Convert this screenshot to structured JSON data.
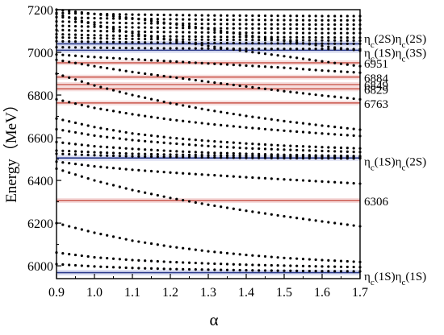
{
  "chart_data": {
    "type": "scatter",
    "xlabel": "α",
    "ylabel": "Energy（MeV）",
    "xlim": [
      0.9,
      1.7
    ],
    "ylim": [
      5940,
      7200
    ],
    "xticks": [
      "0.9",
      "1.0",
      "1.1",
      "1.2",
      "1.3",
      "1.4",
      "1.5",
      "1.6",
      "1.7"
    ],
    "yticks": [
      "6000",
      "6200",
      "6400",
      "6600",
      "6800",
      "7000",
      "7200"
    ],
    "grid": false,
    "legend": "none",
    "thresholds": [
      {
        "name": "ηc(1S)ηc(1S)",
        "value": 5968,
        "color": "#2b3a8c"
      },
      {
        "name": "ηc(1S)ηc(2S)",
        "value": 6505,
        "color": "#2b3a8c"
      },
      {
        "name": "ηc(1S)ηc(3S)",
        "value": 7010,
        "color": "#2b3a8c"
      },
      {
        "name": "ηc(2S)ηc(2S)",
        "value": 7040,
        "color": "#2b3a8c"
      }
    ],
    "resonances": [
      {
        "label": "6306",
        "value": 6306,
        "color": "#c0392b"
      },
      {
        "label": "6763",
        "value": 6763,
        "color": "#c0392b"
      },
      {
        "label": "6829",
        "value": 6829,
        "color": "#c0392b"
      },
      {
        "label": "6849",
        "value": 6849,
        "color": "#c0392b"
      },
      {
        "label": "6884",
        "value": 6884,
        "color": "#c0392b"
      },
      {
        "label": "6951",
        "value": 6951,
        "color": "#c0392b"
      }
    ],
    "right_labels": [
      {
        "text": "ηc(2S)ηc(2S)",
        "base": "η",
        "sub1": "c",
        "mid": "(2S)η",
        "sub2": "c",
        "tail": "(2S)",
        "value": 7068
      },
      {
        "text": "ηc(1S)ηc(3S)",
        "base": "η",
        "sub1": "c",
        "mid": "(1S)η",
        "sub2": "c",
        "tail": "(3S)",
        "value": 7002
      },
      {
        "text": "6951",
        "value": 6951
      },
      {
        "text": "6884",
        "value": 6884
      },
      {
        "text": "6849",
        "value": 6849
      },
      {
        "text": "6829",
        "value": 6829
      },
      {
        "text": "6763",
        "value": 6763
      },
      {
        "text": "ηc(1S)ηc(2S)",
        "base": "η",
        "sub1": "c",
        "mid": "(1S)η",
        "sub2": "c",
        "tail": "(2S)",
        "value": 6492
      },
      {
        "text": "6306",
        "value": 6306
      },
      {
        "text": "ηc(1S)ηc(1S)",
        "base": "η",
        "sub1": "c",
        "mid": "(1S)η",
        "sub2": "c",
        "tail": "(1S)",
        "value": 5955
      }
    ],
    "series": [
      {
        "values": [
          6008,
          5997,
          5990,
          5985,
          5982,
          5979,
          5977,
          5975,
          5974
        ]
      },
      {
        "values": [
          6062,
          6040,
          6027,
          6018,
          6011,
          6005,
          6001,
          5997,
          5994
        ]
      },
      {
        "values": [
          6200,
          6155,
          6118,
          6090,
          6068,
          6051,
          6037,
          6027,
          6018
        ]
      },
      {
        "values": [
          6455,
          6400,
          6355,
          6318,
          6286,
          6258,
          6232,
          6208,
          6185
        ]
      },
      {
        "values": [
          6488,
          6466,
          6450,
          6437,
          6426,
          6415,
          6405,
          6395,
          6385
        ]
      },
      {
        "values": [
          6525,
          6518,
          6513,
          6510,
          6508,
          6506,
          6505,
          6504,
          6503
        ]
      },
      {
        "values": [
          6540,
          6532,
          6525,
          6521,
          6518,
          6515,
          6513,
          6511,
          6510
        ]
      },
      {
        "values": [
          6580,
          6560,
          6548,
          6538,
          6530,
          6525,
          6520,
          6517,
          6514
        ]
      },
      {
        "values": [
          6640,
          6610,
          6589,
          6574,
          6561,
          6551,
          6544,
          6538,
          6533
        ]
      },
      {
        "values": [
          6690,
          6650,
          6620,
          6600,
          6585,
          6573,
          6563,
          6556,
          6550
        ]
      },
      {
        "values": [
          6780,
          6740,
          6710,
          6685,
          6665,
          6648,
          6633,
          6620,
          6608
        ]
      },
      {
        "values": [
          6900,
          6845,
          6800,
          6762,
          6730,
          6702,
          6678,
          6657,
          6638
        ]
      },
      {
        "values": [
          6965,
          6935,
          6908,
          6885,
          6862,
          6840,
          6818,
          6798,
          6780
        ]
      },
      {
        "values": [
          6990,
          6978,
          6968,
          6958,
          6948,
          6938,
          6928,
          6915,
          6905
        ]
      },
      {
        "values": [
          7180,
          7130,
          7090,
          7058,
          7030,
          7005,
          6982,
          6958,
          6935
        ]
      },
      {
        "values": [
          7200,
          7180,
          7160,
          7135,
          7110,
          7080,
          7055,
          7030,
          7008
        ]
      },
      {
        "values": [
          7024,
          7022,
          7020,
          7019,
          7018,
          7017,
          7016,
          7016,
          7015
        ]
      },
      {
        "values": [
          7052,
          7049,
          7047,
          7045,
          7044,
          7043,
          7042,
          7041,
          7040
        ]
      },
      {
        "values": [
          7070,
          7066,
          7063,
          7061,
          7059,
          7058,
          7057,
          7056,
          7055
        ]
      },
      {
        "values": [
          7085,
          7080,
          7077,
          7075,
          7073,
          7072,
          7071,
          7070,
          7069
        ]
      },
      {
        "values": [
          7105,
          7100,
          7097,
          7095,
          7093,
          7092,
          7091,
          7090,
          7090
        ]
      },
      {
        "values": [
          7125,
          7120,
          7117,
          7115,
          7113,
          7112,
          7111,
          7110,
          7110
        ]
      },
      {
        "values": [
          7145,
          7140,
          7137,
          7135,
          7133,
          7132,
          7131,
          7130,
          7130
        ]
      },
      {
        "values": [
          7165,
          7160,
          7157,
          7155,
          7153,
          7152,
          7151,
          7150,
          7150
        ]
      },
      {
        "values": [
          7185,
          7180,
          7177,
          7175,
          7173,
          7172,
          7171,
          7170,
          7170
        ]
      }
    ]
  }
}
